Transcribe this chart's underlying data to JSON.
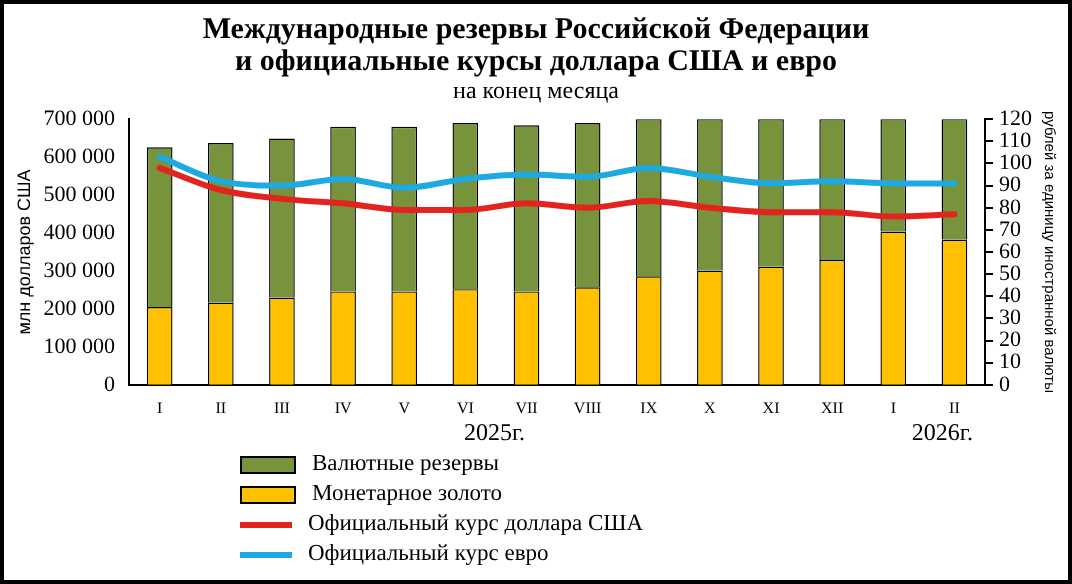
{
  "chart_data": {
    "type": "bar",
    "title": "Международные резервы Российской Федерации\nи официальные курсы доллара США и евро",
    "subtitle": "на конец месяца",
    "ylabel": "млн долларов США",
    "y2label": "рублей за единицу иностранной валюты",
    "categories": [
      "I",
      "II",
      "III",
      "IV",
      "V",
      "VI",
      "VII",
      "VIII",
      "IX",
      "X",
      "XI",
      "XII",
      "I",
      "II"
    ],
    "stacked": true,
    "series": [
      {
        "name": "Монетарное золото",
        "color": "#ffc000",
        "values": [
          205000,
          216000,
          230000,
          246000,
          246000,
          252000,
          246000,
          257000,
          286000,
          301000,
          311000,
          329000,
          404000,
          383000
        ]
      },
      {
        "name": "Валютные резервы",
        "color": "#77933c",
        "values": [
          421000,
          421000,
          419000,
          434000,
          434000,
          438000,
          438000,
          433000,
          414000,
          399000,
          389000,
          371000,
          296000,
          317000
        ]
      },
      {
        "name": "Официальный курс доллара США",
        "type": "line",
        "axis": "y2",
        "color": "#e3231d",
        "values": [
          98,
          88,
          84,
          82,
          79,
          79,
          82,
          80,
          83,
          80,
          78,
          78,
          76,
          77
        ]
      },
      {
        "name": "Официальный курс евро",
        "type": "line",
        "axis": "y2",
        "color": "#1ea9e1",
        "values": [
          103,
          92,
          90,
          93,
          89,
          93,
          95,
          94,
          98,
          94,
          91,
          92,
          91,
          91
        ]
      }
    ],
    "ylim": [
      0,
      700000
    ],
    "yticks": [
      0,
      {
        "value": 100000,
        "label": "100 000"
      },
      {
        "value": 200000,
        "label": "200 000"
      },
      {
        "value": 300000,
        "label": "300 000"
      },
      {
        "value": 400000,
        "label": "400 000"
      },
      {
        "value": 500000,
        "label": "500 000"
      },
      {
        "value": 600000,
        "label": "600 000"
      },
      {
        "value": 700000,
        "label": "700 000"
      }
    ],
    "y2lim": [
      0,
      120
    ],
    "y2ticks": [
      0,
      10,
      20,
      30,
      40,
      50,
      60,
      70,
      80,
      90,
      100,
      110,
      120
    ],
    "annotations": [
      "2025г.",
      "2026г."
    ],
    "legend": "bottom",
    "grid": false,
    "marker": "none"
  }
}
